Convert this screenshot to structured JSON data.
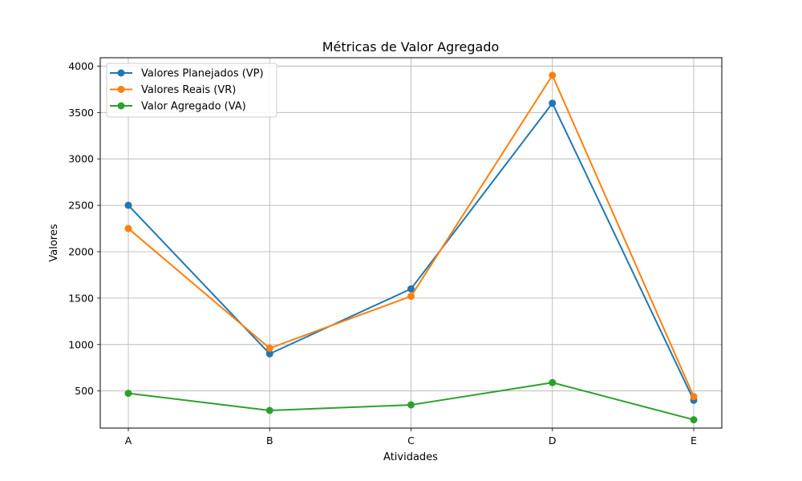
{
  "chart_data": {
    "type": "line",
    "title": "Métricas de Valor Agregado",
    "xlabel": "Atividades",
    "ylabel": "Valores",
    "categories": [
      "A",
      "B",
      "C",
      "D",
      "E"
    ],
    "yticks": [
      500,
      1000,
      1500,
      2000,
      2500,
      3000,
      3500,
      4000
    ],
    "ylim": [
      100,
      4090
    ],
    "grid": true,
    "legend_position": "top-left",
    "series": [
      {
        "name": "Valores Planejados (VP)",
        "color": "#1f77b4",
        "values": [
          2500,
          900,
          1600,
          3600,
          400
        ]
      },
      {
        "name": "Valores Reais (VR)",
        "color": "#ff7f0e",
        "values": [
          2250,
          960,
          1520,
          3900,
          440
        ]
      },
      {
        "name": "Valor Agregado (VA)",
        "color": "#2ca02c",
        "values": [
          475,
          290,
          350,
          590,
          190
        ]
      }
    ]
  }
}
